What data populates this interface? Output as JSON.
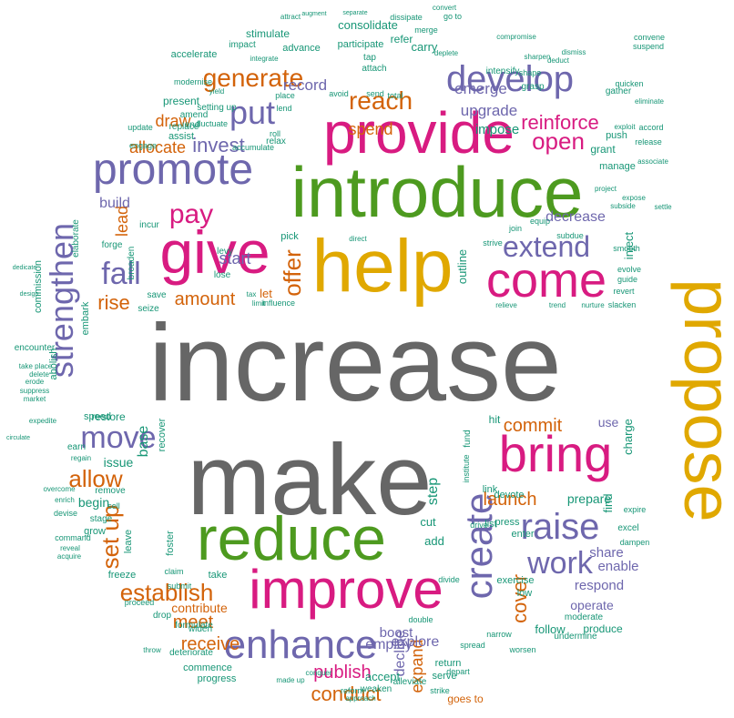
{
  "colors": {
    "gray": "#666666",
    "gold": "#e0a800",
    "green": "#4d9a1f",
    "magenta": "#d81b81",
    "purple": "#6e67ad",
    "orange": "#d3630a",
    "teal": "#179676"
  },
  "words": [
    {
      "text": "increase",
      "color": "gray",
      "weight": 10
    },
    {
      "text": "make",
      "color": "gray",
      "weight": 9.5
    },
    {
      "text": "propose",
      "color": "gold",
      "weight": 8
    },
    {
      "text": "introduce",
      "color": "green",
      "weight": 7
    },
    {
      "text": "help",
      "color": "gold",
      "weight": 7
    },
    {
      "text": "provide",
      "color": "magenta",
      "weight": 6.5
    },
    {
      "text": "reduce",
      "color": "green",
      "weight": 6
    },
    {
      "text": "improve",
      "color": "magenta",
      "weight": 6
    },
    {
      "text": "give",
      "color": "magenta",
      "weight": 6
    },
    {
      "text": "bring",
      "color": "magenta",
      "weight": 5
    },
    {
      "text": "come",
      "color": "magenta",
      "weight": 5
    },
    {
      "text": "create",
      "color": "purple",
      "weight": 4.5
    },
    {
      "text": "promote",
      "color": "purple",
      "weight": 4.5
    },
    {
      "text": "enhance",
      "color": "purple",
      "weight": 4.5
    },
    {
      "text": "develop",
      "color": "purple",
      "weight": 4
    },
    {
      "text": "raise",
      "color": "purple",
      "weight": 4
    },
    {
      "text": "strengthen",
      "color": "purple",
      "weight": 4
    },
    {
      "text": "extend",
      "color": "purple",
      "weight": 3.5
    },
    {
      "text": "work",
      "color": "purple",
      "weight": 3.5
    },
    {
      "text": "move",
      "color": "purple",
      "weight": 3.5
    },
    {
      "text": "fall",
      "color": "purple",
      "weight": 3.5
    },
    {
      "text": "put",
      "color": "purple",
      "weight": 3.5
    },
    {
      "text": "reach",
      "color": "orange",
      "weight": 3
    },
    {
      "text": "generate",
      "color": "orange",
      "weight": 3
    },
    {
      "text": "allow",
      "color": "orange",
      "weight": 3
    },
    {
      "text": "establish",
      "color": "orange",
      "weight": 3
    },
    {
      "text": "pay",
      "color": "magenta",
      "weight": 3
    },
    {
      "text": "offer",
      "color": "orange",
      "weight": 3
    },
    {
      "text": "set up",
      "color": "orange",
      "weight": 3
    },
    {
      "text": "open",
      "color": "magenta",
      "weight": 2.5
    },
    {
      "text": "reinforce",
      "color": "magenta",
      "weight": 2.5
    },
    {
      "text": "commit",
      "color": "orange",
      "weight": 2.5
    },
    {
      "text": "launch",
      "color": "orange",
      "weight": 2.5
    },
    {
      "text": "publish",
      "color": "magenta",
      "weight": 2.5
    },
    {
      "text": "cover",
      "color": "orange",
      "weight": 2.5
    },
    {
      "text": "rise",
      "color": "orange",
      "weight": 2.5
    },
    {
      "text": "invest",
      "color": "purple",
      "weight": 2.5
    },
    {
      "text": "meet",
      "color": "orange",
      "weight": 2.5
    },
    {
      "text": "receive",
      "color": "orange",
      "weight": 2.5
    },
    {
      "text": "conduct",
      "color": "orange",
      "weight": 2.5
    },
    {
      "text": "amount",
      "color": "orange",
      "weight": 2
    },
    {
      "text": "allocate",
      "color": "orange",
      "weight": 2
    },
    {
      "text": "draw",
      "color": "orange",
      "weight": 2
    },
    {
      "text": "spend",
      "color": "orange",
      "weight": 2
    },
    {
      "text": "start",
      "color": "purple",
      "weight": 2
    },
    {
      "text": "lead",
      "color": "orange",
      "weight": 2
    },
    {
      "text": "upgrade",
      "color": "purple",
      "weight": 2
    },
    {
      "text": "emerge",
      "color": "purple",
      "weight": 2
    },
    {
      "text": "record",
      "color": "purple",
      "weight": 2
    },
    {
      "text": "decrease",
      "color": "purple",
      "weight": 2
    },
    {
      "text": "build",
      "color": "purple",
      "weight": 1.8
    },
    {
      "text": "begin",
      "color": "teal",
      "weight": 1.8
    },
    {
      "text": "issue",
      "color": "teal",
      "weight": 1.8
    },
    {
      "text": "base",
      "color": "teal",
      "weight": 1.8
    },
    {
      "text": "step",
      "color": "teal",
      "weight": 1.8
    },
    {
      "text": "expand",
      "color": "orange",
      "weight": 1.8
    },
    {
      "text": "decline",
      "color": "purple",
      "weight": 1.8
    },
    {
      "text": "explore",
      "color": "purple",
      "weight": 1.8
    },
    {
      "text": "employ",
      "color": "purple",
      "weight": 1.8
    },
    {
      "text": "boost",
      "color": "purple",
      "weight": 1.8
    },
    {
      "text": "share",
      "color": "purple",
      "weight": 1.8
    },
    {
      "text": "enable",
      "color": "purple",
      "weight": 1.8
    },
    {
      "text": "respond",
      "color": "purple",
      "weight": 1.8
    },
    {
      "text": "operate",
      "color": "purple",
      "weight": 1.8
    },
    {
      "text": "use",
      "color": "purple",
      "weight": 1.8
    },
    {
      "text": "contribute",
      "color": "orange",
      "weight": 1.8
    },
    {
      "text": "outline",
      "color": "teal",
      "weight": 1.5
    },
    {
      "text": "let",
      "color": "orange",
      "weight": 1.5
    },
    {
      "text": "accept",
      "color": "teal",
      "weight": 1.5
    },
    {
      "text": "follow",
      "color": "teal",
      "weight": 1.5
    },
    {
      "text": "prepare",
      "color": "teal",
      "weight": 1.5
    },
    {
      "text": "charge",
      "color": "teal",
      "weight": 1.5
    },
    {
      "text": "find",
      "color": "teal",
      "weight": 1.5
    },
    {
      "text": "inject",
      "color": "teal",
      "weight": 1.5
    },
    {
      "text": "cut",
      "color": "teal",
      "weight": 1.5
    },
    {
      "text": "add",
      "color": "teal",
      "weight": 1.5
    },
    {
      "text": "goes to",
      "color": "orange",
      "weight": 1.2
    },
    {
      "text": "restore",
      "color": "teal",
      "weight": 1.3
    },
    {
      "text": "speed",
      "color": "teal",
      "weight": 1.3
    },
    {
      "text": "grow",
      "color": "teal",
      "weight": 1.3
    },
    {
      "text": "stage",
      "color": "teal",
      "weight": 1.2
    },
    {
      "text": "earn",
      "color": "teal",
      "weight": 1.2
    },
    {
      "text": "abolish",
      "color": "teal",
      "weight": 1.2
    },
    {
      "text": "embark",
      "color": "teal",
      "weight": 1.2
    },
    {
      "text": "commission",
      "color": "teal",
      "weight": 1.2
    },
    {
      "text": "encounter",
      "color": "teal",
      "weight": 1.2
    },
    {
      "text": "elaborate",
      "color": "teal",
      "weight": 1.2
    },
    {
      "text": "forge",
      "color": "teal",
      "weight": 1.2
    },
    {
      "text": "pick",
      "color": "teal",
      "weight": 1.3
    },
    {
      "text": "save",
      "color": "teal",
      "weight": 1.2
    },
    {
      "text": "seize",
      "color": "teal",
      "weight": 1.2
    },
    {
      "text": "broaden",
      "color": "teal",
      "weight": 1.2
    },
    {
      "text": "lose",
      "color": "teal",
      "weight": 1.2
    },
    {
      "text": "incur",
      "color": "teal",
      "weight": 1.1
    },
    {
      "text": "levy",
      "color": "teal",
      "weight": 1.1
    },
    {
      "text": "setting up",
      "color": "teal",
      "weight": 1.1
    },
    {
      "text": "replace",
      "color": "teal",
      "weight": 1.2
    },
    {
      "text": "engage",
      "color": "teal",
      "weight": 1.1
    },
    {
      "text": "assist",
      "color": "teal",
      "weight": 1.2
    },
    {
      "text": "present",
      "color": "teal",
      "weight": 1.3
    },
    {
      "text": "accelerate",
      "color": "teal",
      "weight": 1.2
    },
    {
      "text": "impact",
      "color": "teal",
      "weight": 1.2
    },
    {
      "text": "stimulate",
      "color": "teal",
      "weight": 1.3
    },
    {
      "text": "advance",
      "color": "teal",
      "weight": 1.2
    },
    {
      "text": "consolidate",
      "color": "teal",
      "weight": 1.4
    },
    {
      "text": "participate",
      "color": "teal",
      "weight": 1.2
    },
    {
      "text": "refer",
      "color": "teal",
      "weight": 1.3
    },
    {
      "text": "carry",
      "color": "teal",
      "weight": 1.4
    },
    {
      "text": "tap",
      "color": "teal",
      "weight": 1.1
    },
    {
      "text": "attach",
      "color": "teal",
      "weight": 1.1
    },
    {
      "text": "avoid",
      "color": "teal",
      "weight": 1.1
    },
    {
      "text": "place",
      "color": "teal",
      "weight": 1.1
    },
    {
      "text": "relax",
      "color": "teal",
      "weight": 1.2
    },
    {
      "text": "accumulate",
      "color": "teal",
      "weight": 1.1
    },
    {
      "text": "grant",
      "color": "teal",
      "weight": 1.3
    },
    {
      "text": "manage",
      "color": "teal",
      "weight": 1.2
    },
    {
      "text": "push",
      "color": "teal",
      "weight": 1.2
    },
    {
      "text": "release",
      "color": "teal",
      "weight": 1.1
    },
    {
      "text": "gather",
      "color": "teal",
      "weight": 1.1
    },
    {
      "text": "impose",
      "color": "teal",
      "weight": 1.4
    },
    {
      "text": "convene",
      "color": "teal",
      "weight": 1.0
    },
    {
      "text": "suspend",
      "color": "teal",
      "weight": 1.0
    },
    {
      "text": "go to",
      "color": "teal",
      "weight": 1.0
    },
    {
      "text": "expire",
      "color": "teal",
      "weight": 1.0
    },
    {
      "text": "excel",
      "color": "teal",
      "weight": 1.1
    },
    {
      "text": "dampen",
      "color": "teal",
      "weight": 1.0
    },
    {
      "text": "produce",
      "color": "teal",
      "weight": 1.2
    },
    {
      "text": "moderate",
      "color": "teal",
      "weight": 1.1
    },
    {
      "text": "undermine",
      "color": "teal",
      "weight": 1.1
    },
    {
      "text": "exercise",
      "color": "teal",
      "weight": 1.2
    },
    {
      "text": "low",
      "color": "teal",
      "weight": 1.2
    },
    {
      "text": "enter",
      "color": "teal",
      "weight": 1.2
    },
    {
      "text": "press",
      "color": "teal",
      "weight": 1.3
    },
    {
      "text": "list",
      "color": "teal",
      "weight": 1.3
    },
    {
      "text": "devote",
      "color": "teal",
      "weight": 1.2
    },
    {
      "text": "link",
      "color": "teal",
      "weight": 1.2
    },
    {
      "text": "hit",
      "color": "teal",
      "weight": 1.3
    },
    {
      "text": "serve",
      "color": "teal",
      "weight": 1.2
    },
    {
      "text": "return",
      "color": "teal",
      "weight": 1.2
    },
    {
      "text": "alleviate",
      "color": "teal",
      "weight": 1.1
    },
    {
      "text": "weaken",
      "color": "teal",
      "weight": 1.1
    },
    {
      "text": "reform",
      "color": "teal",
      "weight": 1.0
    },
    {
      "text": "commence",
      "color": "teal",
      "weight": 1.2
    },
    {
      "text": "progress",
      "color": "teal",
      "weight": 1.2
    },
    {
      "text": "formulate",
      "color": "teal",
      "weight": 1.2
    },
    {
      "text": "deteriorate",
      "color": "teal",
      "weight": 1.1
    },
    {
      "text": "widen",
      "color": "teal",
      "weight": 1.1
    },
    {
      "text": "drop",
      "color": "teal",
      "weight": 1.2
    },
    {
      "text": "take",
      "color": "teal",
      "weight": 1.2
    },
    {
      "text": "claim",
      "color": "teal",
      "weight": 1.0
    },
    {
      "text": "submit",
      "color": "teal",
      "weight": 1.0
    },
    {
      "text": "proceed",
      "color": "teal",
      "weight": 1.0
    },
    {
      "text": "freeze",
      "color": "teal",
      "weight": 1.2
    },
    {
      "text": "leave",
      "color": "teal",
      "weight": 1.2
    },
    {
      "text": "foster",
      "color": "teal",
      "weight": 1.3
    },
    {
      "text": "recover",
      "color": "teal",
      "weight": 1.2
    },
    {
      "text": "remove",
      "color": "teal",
      "weight": 1.1
    },
    {
      "text": "sell",
      "color": "teal",
      "weight": 1.1
    },
    {
      "text": "devise",
      "color": "teal",
      "weight": 1.0
    },
    {
      "text": "command",
      "color": "teal",
      "weight": 1.0
    },
    {
      "text": "reveal",
      "color": "teal",
      "weight": 1.0
    },
    {
      "text": "acquire",
      "color": "teal",
      "weight": 1.0
    },
    {
      "text": "overcome",
      "color": "teal",
      "weight": 1.0
    },
    {
      "text": "expedite",
      "color": "teal",
      "weight": 1.0
    },
    {
      "text": "circulate",
      "color": "teal",
      "weight": 1.0
    },
    {
      "text": "take place",
      "color": "teal",
      "weight": 1.0
    },
    {
      "text": "delete",
      "color": "teal",
      "weight": 1.0
    },
    {
      "text": "erode",
      "color": "teal",
      "weight": 1.0
    },
    {
      "text": "suppress",
      "color": "teal",
      "weight": 1.0
    },
    {
      "text": "market",
      "color": "teal",
      "weight": 1.0
    },
    {
      "text": "influence",
      "color": "teal",
      "weight": 1.0
    },
    {
      "text": "limit",
      "color": "teal",
      "weight": 1.0
    },
    {
      "text": "tax",
      "color": "teal",
      "weight": 1.0
    },
    {
      "text": "enrich",
      "color": "teal",
      "weight": 1.0
    },
    {
      "text": "regain",
      "color": "teal",
      "weight": 1.0
    },
    {
      "text": "yield",
      "color": "teal",
      "weight": 1.0
    },
    {
      "text": "fluctuate",
      "color": "teal",
      "weight": 1.0
    },
    {
      "text": "update",
      "color": "teal",
      "weight": 1.0
    },
    {
      "text": "modernise",
      "color": "teal",
      "weight": 1.0
    },
    {
      "text": "amend",
      "color": "teal",
      "weight": 1.0
    },
    {
      "text": "end",
      "color": "teal",
      "weight": 1.0
    },
    {
      "text": "roll",
      "color": "teal",
      "weight": 1.0
    },
    {
      "text": "lend",
      "color": "teal",
      "weight": 1.0
    },
    {
      "text": "send",
      "color": "teal",
      "weight": 1.0
    },
    {
      "text": "total",
      "color": "teal",
      "weight": 1.0
    },
    {
      "text": "grasp",
      "color": "teal",
      "weight": 1.0
    },
    {
      "text": "shape",
      "color": "teal",
      "weight": 1.0
    },
    {
      "text": "quicken",
      "color": "teal",
      "weight": 1.0
    },
    {
      "text": "slacken",
      "color": "teal",
      "weight": 1.0
    },
    {
      "text": "nurture",
      "color": "teal",
      "weight": 1.0
    },
    {
      "text": "relieve",
      "color": "teal",
      "weight": 1.0
    },
    {
      "text": "trend",
      "color": "teal",
      "weight": 1.0
    },
    {
      "text": "subdue",
      "color": "teal",
      "weight": 1.0
    },
    {
      "text": "strive",
      "color": "teal",
      "weight": 1.0
    },
    {
      "text": "join",
      "color": "teal",
      "weight": 1.0
    },
    {
      "text": "equip",
      "color": "teal",
      "weight": 1.0
    },
    {
      "text": "direct",
      "color": "teal",
      "weight": 1.0
    },
    {
      "text": "revert",
      "color": "teal",
      "weight": 1.0
    },
    {
      "text": "evolve",
      "color": "teal",
      "weight": 1.0
    },
    {
      "text": "guide",
      "color": "teal",
      "weight": 1.0
    },
    {
      "text": "smooth",
      "color": "teal",
      "weight": 1.0
    },
    {
      "text": "worsen",
      "color": "teal",
      "weight": 1.0
    },
    {
      "text": "drive",
      "color": "teal",
      "weight": 1.0
    },
    {
      "text": "narrow",
      "color": "teal",
      "weight": 1.0
    },
    {
      "text": "depart",
      "color": "teal",
      "weight": 1.0
    },
    {
      "text": "fund",
      "color": "teal",
      "weight": 1.0
    },
    {
      "text": "institute",
      "color": "teal",
      "weight": 1.0
    },
    {
      "text": "intensify",
      "color": "teal",
      "weight": 1.0
    },
    {
      "text": "spread",
      "color": "teal",
      "weight": 1.0
    },
    {
      "text": "double",
      "color": "teal",
      "weight": 1.0
    },
    {
      "text": "divide",
      "color": "teal",
      "weight": 1.0
    },
    {
      "text": "strike",
      "color": "teal",
      "weight": 1.0
    },
    {
      "text": "approach",
      "color": "teal",
      "weight": 1.0
    },
    {
      "text": "conquer",
      "color": "teal",
      "weight": 1.0
    },
    {
      "text": "made up",
      "color": "teal",
      "weight": 1.0
    },
    {
      "text": "throw",
      "color": "teal",
      "weight": 1.0
    },
    {
      "text": "dedicate",
      "color": "teal",
      "weight": 1.0
    },
    {
      "text": "design",
      "color": "teal",
      "weight": 1.0
    },
    {
      "text": "accord",
      "color": "teal",
      "weight": 1.0
    },
    {
      "text": "associate",
      "color": "teal",
      "weight": 1.0
    },
    {
      "text": "settle",
      "color": "teal",
      "weight": 1.0
    },
    {
      "text": "convert",
      "color": "teal",
      "weight": 1.0
    },
    {
      "text": "integrate",
      "color": "teal",
      "weight": 1.0
    },
    {
      "text": "attract",
      "color": "teal",
      "weight": 1.0
    },
    {
      "text": "augment",
      "color": "teal",
      "weight": 1.0
    },
    {
      "text": "separate",
      "color": "teal",
      "weight": 1.0
    },
    {
      "text": "dissipate",
      "color": "teal",
      "weight": 1.0
    },
    {
      "text": "merge",
      "color": "teal",
      "weight": 1.0
    },
    {
      "text": "deplete",
      "color": "teal",
      "weight": 1.0
    },
    {
      "text": "compromise",
      "color": "teal",
      "weight": 1.0
    },
    {
      "text": "sharpen",
      "color": "teal",
      "weight": 1.0
    },
    {
      "text": "deduct",
      "color": "teal",
      "weight": 1.0
    },
    {
      "text": "dismiss",
      "color": "teal",
      "weight": 1.0
    },
    {
      "text": "eliminate",
      "color": "teal",
      "weight": 1.0
    },
    {
      "text": "exploit",
      "color": "teal",
      "weight": 1.0
    },
    {
      "text": "project",
      "color": "teal",
      "weight": 1.0
    },
    {
      "text": "expose",
      "color": "teal",
      "weight": 1.0
    },
    {
      "text": "subside",
      "color": "teal",
      "weight": 1.0
    }
  ]
}
